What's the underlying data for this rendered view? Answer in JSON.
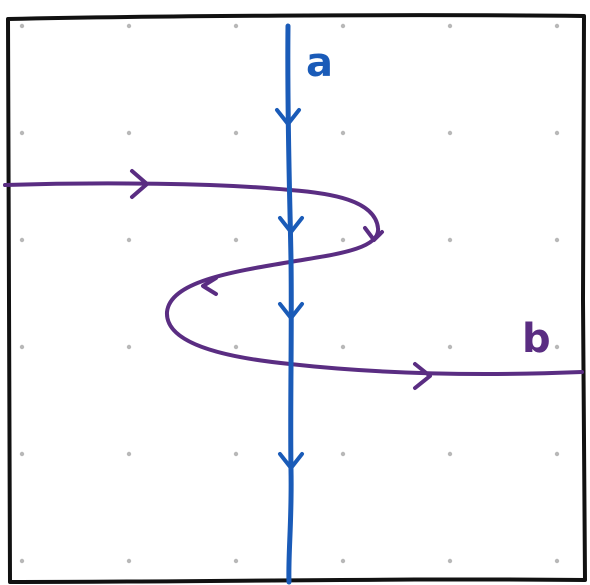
{
  "diagram": {
    "colors": {
      "frame": "#111111",
      "grid_dot": "#b8b8b8",
      "curve_a": "#1a5bb8",
      "curve_b": "#5a2d82",
      "background": "#ffffff"
    },
    "curves": [
      {
        "id": "a",
        "label": "a",
        "arrows": 4,
        "direction": "top-to-bottom"
      },
      {
        "id": "b",
        "label": "b",
        "arrows": 4,
        "direction": "left-to-right"
      }
    ],
    "grid": {
      "rows": 6,
      "cols": 6
    }
  }
}
